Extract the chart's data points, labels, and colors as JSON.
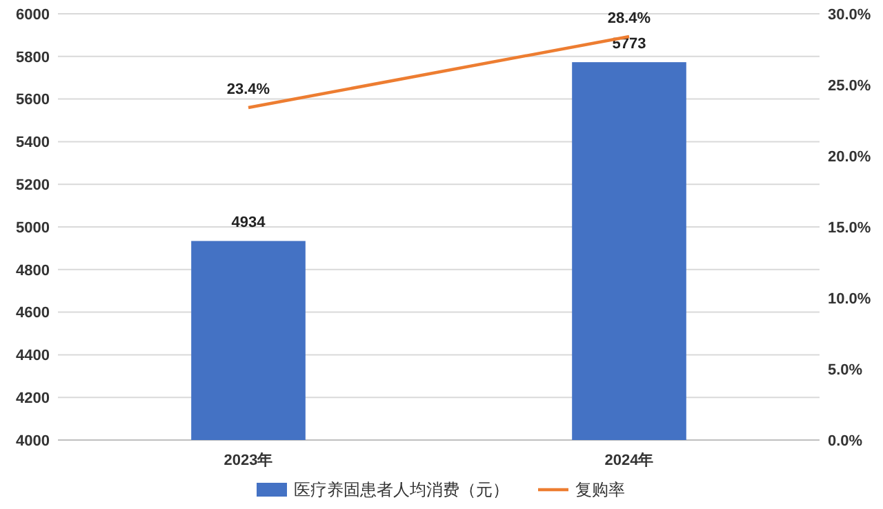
{
  "chart_data": {
    "type": "bar",
    "categories": [
      "2023年",
      "2024年"
    ],
    "series": [
      {
        "name": "医疗养固患者人均消费（元）",
        "color": "#4472c4",
        "values": [
          4934,
          5773
        ],
        "value_labels": [
          "4934",
          "5773"
        ]
      },
      {
        "name": "复购率",
        "type": "line",
        "axis": "y2",
        "color": "#ed7d31",
        "values": [
          23.4,
          28.4
        ],
        "value_labels": [
          "23.4%",
          "28.4%"
        ]
      }
    ],
    "ylim": [
      4000,
      6000
    ],
    "yticks": [
      4000,
      4200,
      4400,
      4600,
      4800,
      5000,
      5200,
      5400,
      5600,
      5800,
      6000
    ],
    "y2lim": [
      0,
      30
    ],
    "y2ticks": [
      {
        "value": 0,
        "label": "0.0%"
      },
      {
        "value": 5,
        "label": "5.0%"
      },
      {
        "value": 10,
        "label": "10.0%"
      },
      {
        "value": 15,
        "label": "15.0%"
      },
      {
        "value": 20,
        "label": "20.0%"
      },
      {
        "value": 25,
        "label": "25.0%"
      },
      {
        "value": 30,
        "label": "30.0%"
      }
    ],
    "grid": "y",
    "legend": "bottom",
    "marker": "none",
    "line_style": "solid"
  }
}
